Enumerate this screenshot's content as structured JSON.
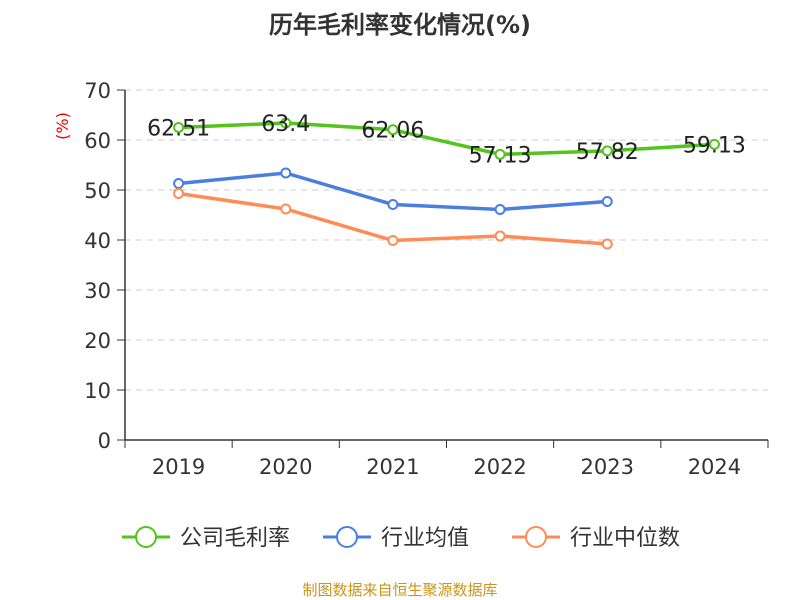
{
  "chart_data": {
    "type": "line",
    "title": "历年毛利率变化情况(%)",
    "ylabel": "(%)",
    "xlabel": "",
    "categories": [
      "2019",
      "2020",
      "2021",
      "2022",
      "2023",
      "2024"
    ],
    "ylim": [
      0,
      70
    ],
    "yticks": [
      0,
      10,
      20,
      30,
      40,
      50,
      60,
      70
    ],
    "grid": true,
    "legend_position": "bottom",
    "series": [
      {
        "name": "公司毛利率",
        "color": "#52c41a",
        "values": [
          62.51,
          63.4,
          62.06,
          57.13,
          57.82,
          59.13
        ],
        "labels": [
          "62.51",
          "63.4",
          "62.06",
          "57.13",
          "57.82",
          "59.13"
        ]
      },
      {
        "name": "行业均值",
        "color": "#4a7fe0",
        "values": [
          51.3,
          53.4,
          47.1,
          46.1,
          47.7,
          null
        ]
      },
      {
        "name": "行业中位数",
        "color": "#ff8c55",
        "values": [
          49.3,
          46.2,
          39.9,
          40.8,
          39.2,
          null
        ]
      }
    ]
  },
  "footer": {
    "source": "制图数据来自恒生聚源数据库",
    "color": "#c8951a"
  }
}
